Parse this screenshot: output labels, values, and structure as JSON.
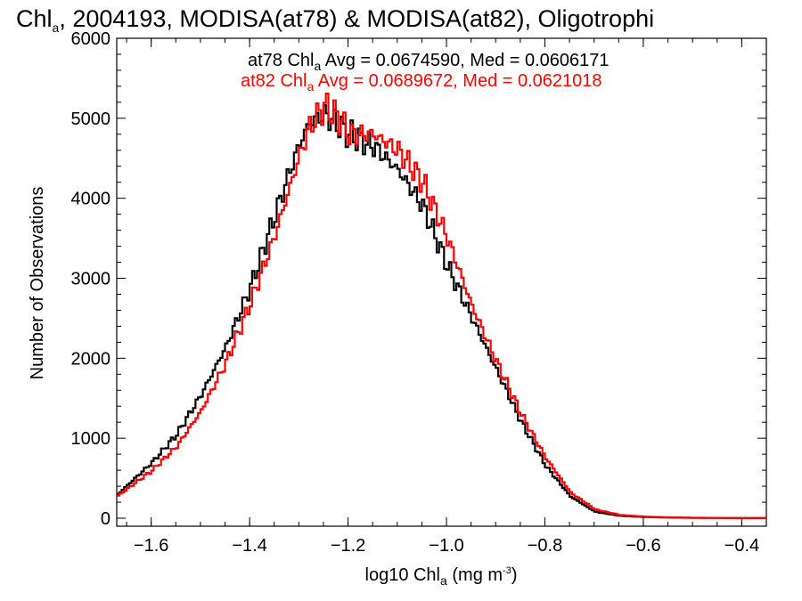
{
  "chart_data": {
    "type": "line",
    "title": {
      "prefix": "Chl",
      "sub": "a",
      "rest": ", 2004193, MODISA(at78) & MODISA(at82), Oligotrophi"
    },
    "xlabel": {
      "prefix": "log10 Chl",
      "sub": "a",
      "mid": " (mg m",
      "sup": "-3",
      "suffix": ")"
    },
    "ylabel": "Number of Observations",
    "xlim": [
      -1.67,
      -0.35
    ],
    "ylim": [
      -100,
      6000
    ],
    "x_ticks": [
      -1.6,
      -1.4,
      -1.2,
      -1.0,
      -0.8,
      -0.6,
      -0.4
    ],
    "x_tick_labels": [
      "−1.6",
      "−1.4",
      "−1.2",
      "−1.0",
      "−0.8",
      "−0.6",
      "−0.4"
    ],
    "y_ticks": [
      0,
      1000,
      2000,
      3000,
      4000,
      5000,
      6000
    ],
    "y_tick_labels": [
      "0",
      "1000",
      "2000",
      "3000",
      "4000",
      "5000",
      "6000"
    ],
    "grid": false,
    "step": "histogram",
    "series": [
      {
        "key": "at78",
        "color": "#000000",
        "stats": {
          "name": "at78 Chl",
          "sub": "a",
          "rest": " Avg = 0.0674590, Med = 0.0606171"
        },
        "x": [
          -1.67,
          -1.6,
          -1.55,
          -1.5,
          -1.45,
          -1.4,
          -1.35,
          -1.32,
          -1.3,
          -1.28,
          -1.25,
          -1.22,
          -1.2,
          -1.15,
          -1.1,
          -1.05,
          -1.0,
          -0.95,
          -0.9,
          -0.85,
          -0.8,
          -0.75,
          -0.7,
          -0.65,
          -0.6,
          -0.55,
          -0.5,
          -0.45,
          -0.4,
          -0.35
        ],
        "y": [
          300,
          700,
          1050,
          1550,
          2150,
          2900,
          3800,
          4350,
          4700,
          4950,
          5050,
          4900,
          4800,
          4650,
          4350,
          3900,
          3150,
          2500,
          1850,
          1200,
          650,
          270,
          80,
          30,
          15,
          8,
          5,
          3,
          2,
          1
        ]
      },
      {
        "key": "at82",
        "color": "#ff0000",
        "stats": {
          "name": "at82 Chl",
          "sub": "a",
          "rest": " Avg = 0.0689672, Med = 0.0621018"
        },
        "x": [
          -1.67,
          -1.6,
          -1.55,
          -1.5,
          -1.45,
          -1.4,
          -1.35,
          -1.32,
          -1.3,
          -1.28,
          -1.25,
          -1.22,
          -1.2,
          -1.15,
          -1.1,
          -1.05,
          -1.0,
          -0.95,
          -0.9,
          -0.85,
          -0.8,
          -0.75,
          -0.7,
          -0.65,
          -0.6,
          -0.55,
          -0.5,
          -0.45,
          -0.4,
          -0.35
        ],
        "y": [
          280,
          600,
          900,
          1350,
          1950,
          2700,
          3550,
          4150,
          4550,
          4900,
          5150,
          5000,
          4800,
          4800,
          4600,
          4200,
          3500,
          2650,
          1950,
          1300,
          750,
          320,
          110,
          40,
          20,
          10,
          6,
          4,
          2,
          1
        ]
      }
    ]
  }
}
